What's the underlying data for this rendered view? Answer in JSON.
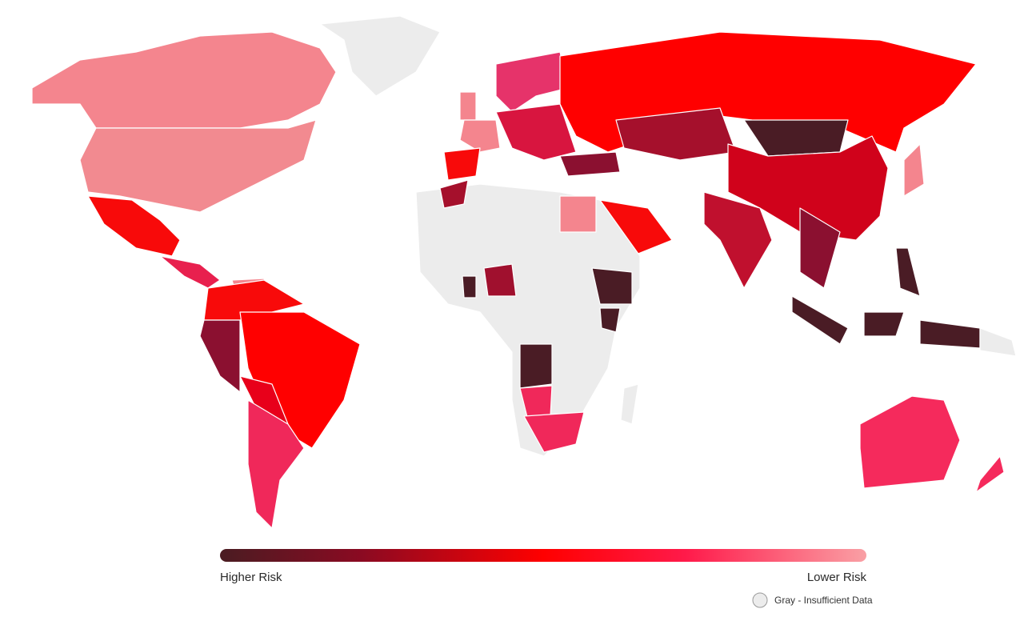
{
  "legend": {
    "high_label": "Higher Risk",
    "low_label": "Lower Risk",
    "gray_note": "Gray - Insufficient Data"
  }
}
